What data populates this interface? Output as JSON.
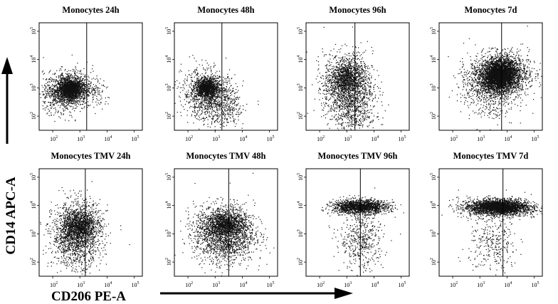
{
  "chart_data": {
    "type": "scatter",
    "figure_labels": {
      "ylabel": "CD14 APC-A",
      "xlabel": "CD206 PE-A"
    },
    "axis": {
      "scale": "log10",
      "xlim": [
        1.5,
        5.3
      ],
      "ylim": [
        1.5,
        5.3
      ],
      "tick_exponents": [
        2,
        3,
        4,
        5
      ],
      "tick_base": "10"
    },
    "panels": [
      {
        "title": "Monocytes 24h",
        "gate_x": 3.25,
        "populations": [
          {
            "n": 1500,
            "cx": 2.65,
            "cy": 2.95,
            "sx": 0.22,
            "sy": 0.17,
            "rho": 0.1
          },
          {
            "n": 1300,
            "cx": 2.55,
            "cy": 2.9,
            "sx": 0.45,
            "sy": 0.35,
            "rho": 0.1
          },
          {
            "n": 80,
            "cx": 3.6,
            "cy": 2.8,
            "sx": 0.3,
            "sy": 0.3,
            "rho": 0
          }
        ]
      },
      {
        "title": "Monocytes 48h",
        "gate_x": 3.25,
        "populations": [
          {
            "n": 1100,
            "cx": 2.7,
            "cy": 3.0,
            "sx": 0.2,
            "sy": 0.16,
            "rho": 0.1
          },
          {
            "n": 1200,
            "cx": 2.8,
            "cy": 2.7,
            "sx": 0.5,
            "sy": 0.45,
            "rho": -0.2
          },
          {
            "n": 120,
            "cx": 3.5,
            "cy": 2.2,
            "sx": 0.3,
            "sy": 0.3,
            "rho": 0
          }
        ]
      },
      {
        "title": "Monocytes 96h",
        "gate_x": 3.3,
        "populations": [
          {
            "n": 700,
            "cx": 2.95,
            "cy": 3.35,
            "sx": 0.3,
            "sy": 0.28,
            "rho": 0.1
          },
          {
            "n": 1600,
            "cx": 3.05,
            "cy": 3.0,
            "sx": 0.45,
            "sy": 0.6,
            "rho": 0
          },
          {
            "n": 200,
            "cx": 3.3,
            "cy": 2.0,
            "sx": 0.4,
            "sy": 0.25,
            "rho": 0
          }
        ]
      },
      {
        "title": "Monocytes 7d",
        "gate_x": 3.8,
        "populations": [
          {
            "n": 2600,
            "cx": 3.75,
            "cy": 3.45,
            "sx": 0.3,
            "sy": 0.25,
            "rho": 0.1
          },
          {
            "n": 2200,
            "cx": 3.7,
            "cy": 3.4,
            "sx": 0.55,
            "sy": 0.4,
            "rho": 0.1
          },
          {
            "n": 250,
            "cx": 3.3,
            "cy": 2.6,
            "sx": 0.5,
            "sy": 0.5,
            "rho": 0
          }
        ]
      },
      {
        "title": "Monocytes TMV 24h",
        "gate_x": 3.2,
        "populations": [
          {
            "n": 700,
            "cx": 3.0,
            "cy": 3.3,
            "sx": 0.3,
            "sy": 0.22,
            "rho": 0.1
          },
          {
            "n": 1900,
            "cx": 2.9,
            "cy": 3.0,
            "sx": 0.45,
            "sy": 0.55,
            "rho": 0.05
          }
        ]
      },
      {
        "title": "Monocytes TMV 48h",
        "gate_x": 3.5,
        "populations": [
          {
            "n": 900,
            "cx": 3.35,
            "cy": 3.35,
            "sx": 0.38,
            "sy": 0.2,
            "rho": 0
          },
          {
            "n": 2000,
            "cx": 3.35,
            "cy": 3.0,
            "sx": 0.55,
            "sy": 0.5,
            "rho": 0
          }
        ]
      },
      {
        "title": "Monocytes TMV 96h",
        "gate_x": 3.5,
        "populations": [
          {
            "n": 1700,
            "cx": 3.5,
            "cy": 3.95,
            "sx": 0.5,
            "sy": 0.12,
            "rho": 0
          },
          {
            "n": 500,
            "cx": 3.55,
            "cy": 2.8,
            "sx": 0.4,
            "sy": 0.55,
            "rho": 0
          }
        ]
      },
      {
        "title": "Monocytes TMV 7d",
        "gate_x": 3.85,
        "populations": [
          {
            "n": 2200,
            "cx": 3.7,
            "cy": 3.95,
            "sx": 0.5,
            "sy": 0.12,
            "rho": 0
          },
          {
            "n": 900,
            "cx": 3.7,
            "cy": 3.9,
            "sx": 0.75,
            "sy": 0.18,
            "rho": 0
          },
          {
            "n": 300,
            "cx": 3.5,
            "cy": 2.6,
            "sx": 0.45,
            "sy": 0.5,
            "rho": 0
          }
        ]
      }
    ]
  }
}
